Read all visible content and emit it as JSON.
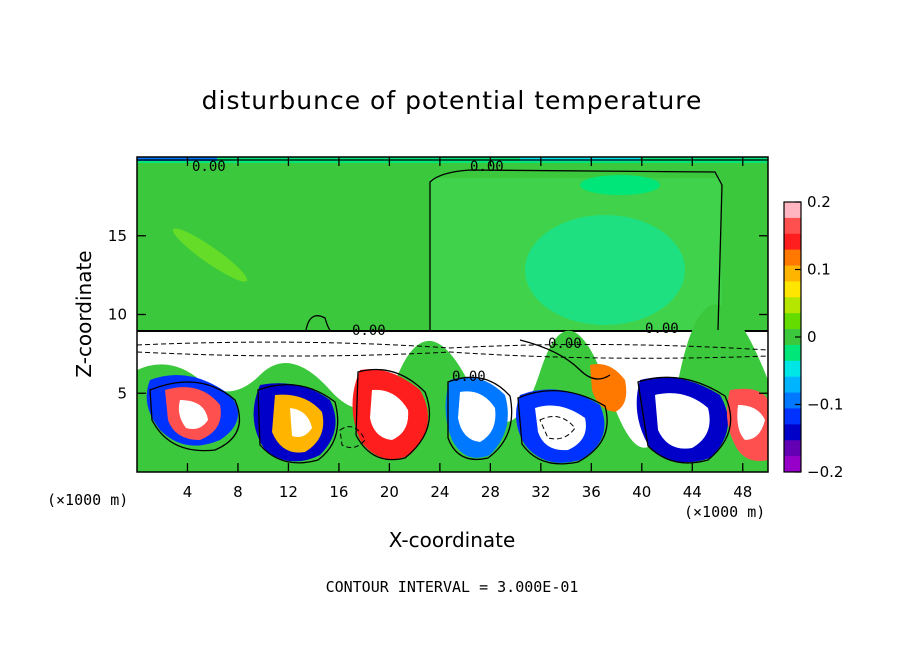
{
  "chart_data": {
    "type": "heatmap",
    "title": "disturbunce of potential temperature",
    "xlabel": "X-coordinate",
    "ylabel": "Z-coordinate",
    "x_unit": "(×1000 m)",
    "y_unit": "(×1000 m)",
    "xlim": [
      0,
      50
    ],
    "ylim": [
      0,
      20
    ],
    "x_ticks": [
      4,
      8,
      12,
      16,
      20,
      24,
      28,
      32,
      36,
      40,
      44,
      48
    ],
    "y_ticks": [
      5,
      10,
      15
    ],
    "colorbar": {
      "min": -0.2,
      "max": 0.2,
      "ticks": [
        0.2,
        0.1,
        0,
        -0.1,
        -0.2
      ],
      "tick_labels": [
        "0.2",
        "0.1",
        "0",
        "−0.1",
        "−0.2"
      ],
      "colors": [
        "#ffb6c1",
        "#ff5050",
        "#ff1e1e",
        "#ff7800",
        "#ffb400",
        "#ffe600",
        "#b4e600",
        "#64dc00",
        "#3cc83c",
        "#00e678",
        "#00e6e6",
        "#00b4ff",
        "#0078ff",
        "#0032ff",
        "#0000c8",
        "#6400b4",
        "#9600c8"
      ]
    },
    "contour_labels": [
      "0.00",
      "0.00",
      "0.00",
      "0.00",
      "0.00",
      "0.00"
    ],
    "footer": "CONTOUR INTERVAL = 3.000E-01"
  }
}
